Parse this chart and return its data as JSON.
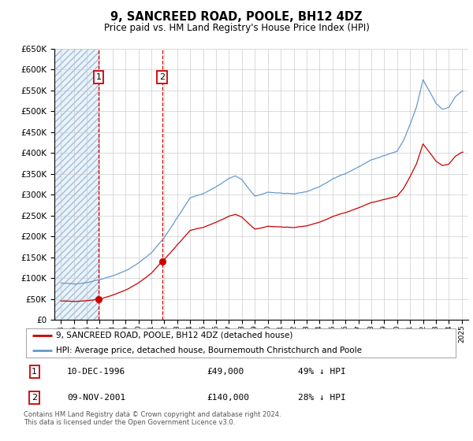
{
  "title": "9, SANCREED ROAD, POOLE, BH12 4DZ",
  "subtitle": "Price paid vs. HM Land Registry's House Price Index (HPI)",
  "legend_line1": "9, SANCREED ROAD, POOLE, BH12 4DZ (detached house)",
  "legend_line2": "HPI: Average price, detached house, Bournemouth Christchurch and Poole",
  "footnote": "Contains HM Land Registry data © Crown copyright and database right 2024.\nThis data is licensed under the Open Government Licence v3.0.",
  "sale1_date": 1996.92,
  "sale1_price": 49000,
  "sale1_info": "10-DEC-1996",
  "sale1_amount": "£49,000",
  "sale1_hpi": "49% ↓ HPI",
  "sale2_date": 2001.83,
  "sale2_price": 140000,
  "sale2_info": "09-NOV-2001",
  "sale2_amount": "£140,000",
  "sale2_hpi": "28% ↓ HPI",
  "ylim_min": 0,
  "ylim_max": 650000,
  "xlim_min": 1993.5,
  "xlim_max": 2025.5,
  "hatch_end": 1997.0,
  "price_color": "#cc0000",
  "hpi_color": "#6699cc",
  "bg_color": "#ffffff",
  "hatch_bg": "#ddeeff",
  "grid_color": "#cccccc"
}
